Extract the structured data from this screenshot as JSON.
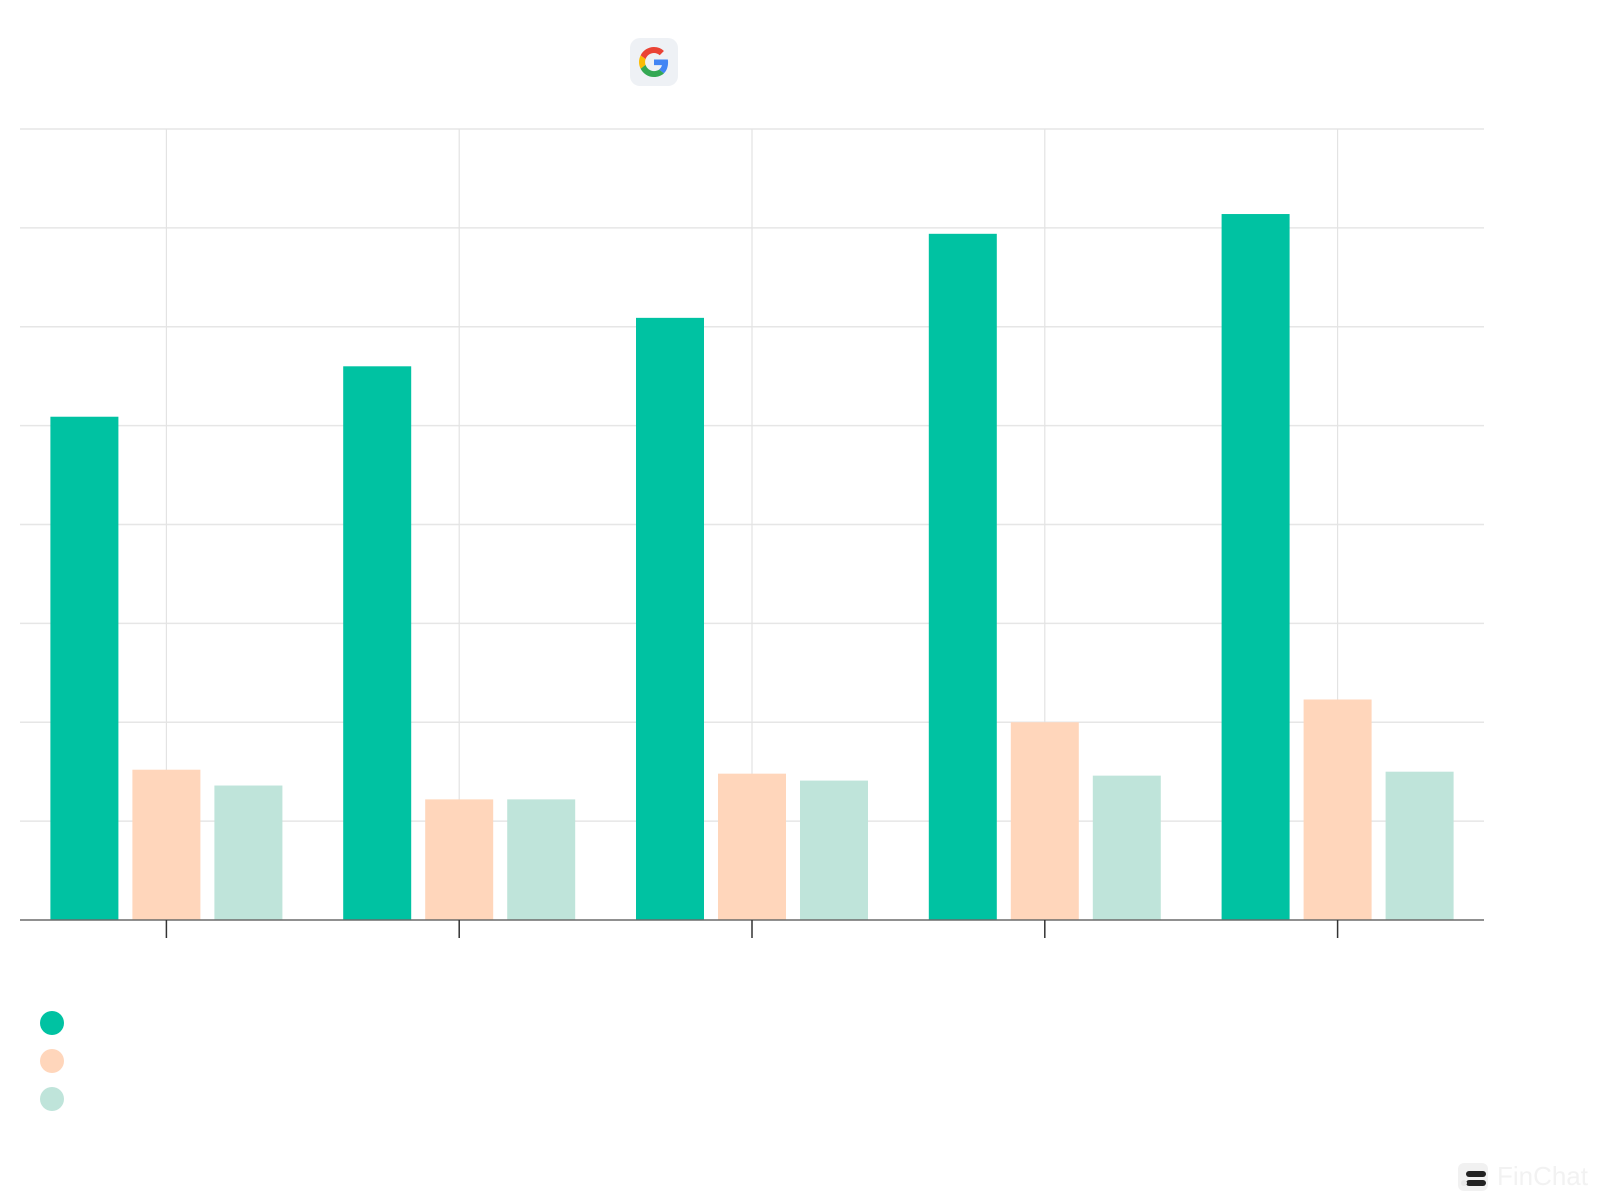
{
  "logo": {
    "icon": "google-g-icon",
    "colors": [
      "#4285F4",
      "#EA4335",
      "#FBBC05",
      "#34A853"
    ]
  },
  "watermark": {
    "text": "FinChat"
  },
  "chart_data": {
    "type": "bar",
    "title": "",
    "xlabel": "",
    "ylabel": "",
    "categories": [
      "",
      "",
      "",
      "",
      ""
    ],
    "series": [
      {
        "name": "",
        "color": "#00C2A2",
        "values": [
          50.9,
          56.0,
          60.9,
          69.4,
          71.4
        ]
      },
      {
        "name": "",
        "color": "#FFD6BB",
        "values": [
          15.2,
          12.2,
          14.8,
          20.0,
          22.3
        ]
      },
      {
        "name": "",
        "color": "#BFE4DA",
        "values": [
          13.6,
          12.2,
          14.1,
          14.6,
          15.0
        ]
      }
    ],
    "ylim": [
      0,
      80
    ],
    "ytick_step": 10,
    "grid": true,
    "legend": "bottom-left"
  }
}
